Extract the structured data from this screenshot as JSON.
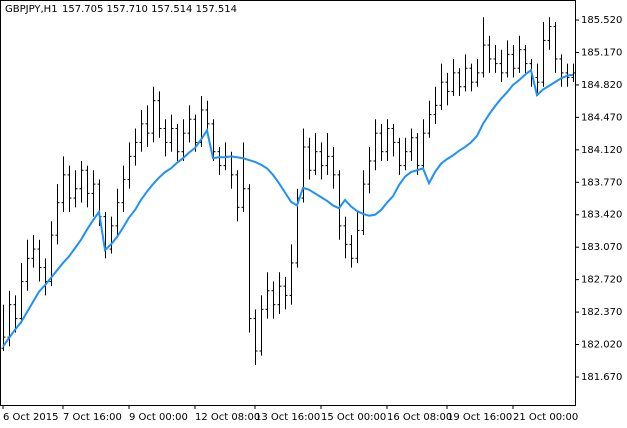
{
  "chart_data": {
    "type": "ohlc",
    "symbol": "GBPJPY,H1",
    "quote": "157.705 157.710 157.514 157.514",
    "bar_color": "#000000",
    "categories": [
      "6 Oct 2015",
      null,
      null,
      null,
      null,
      null,
      null,
      null,
      null,
      null,
      "7 Oct 16:00",
      null,
      null,
      null,
      null,
      null,
      null,
      null,
      null,
      null,
      null,
      "9 Oct 00:00",
      null,
      null,
      null,
      null,
      null,
      null,
      null,
      null,
      null,
      null,
      "12 Oct 08:00",
      null,
      null,
      null,
      null,
      null,
      null,
      null,
      null,
      null,
      "13 Oct 16:00",
      null,
      null,
      null,
      null,
      null,
      null,
      null,
      null,
      null,
      null,
      "15 Oct 00:00",
      null,
      null,
      null,
      null,
      null,
      null,
      null,
      null,
      null,
      null,
      "16 Oct 08:00",
      null,
      null,
      null,
      null,
      null,
      null,
      null,
      null,
      null,
      "19 Oct 16:00",
      null,
      null,
      null,
      null,
      null,
      null,
      null,
      null,
      null,
      null,
      "21 Oct 00:00",
      null,
      null,
      null,
      null,
      null,
      null,
      null,
      null,
      null,
      null
    ],
    "open": [
      181.98,
      182.1,
      182.45,
      182.3,
      182.7,
      182.95,
      183.05,
      182.85,
      182.7,
      183.2,
      183.55,
      183.85,
      183.6,
      183.7,
      183.9,
      183.65,
      183.75,
      183.4,
      183.05,
      183.3,
      183.55,
      183.8,
      184.05,
      184.2,
      184.4,
      184.3,
      184.65,
      184.35,
      184.2,
      184.35,
      184.1,
      184.3,
      184.45,
      184.2,
      184.55,
      184.4,
      184.1,
      183.95,
      184.05,
      183.85,
      183.5,
      183.7,
      182.3,
      181.95,
      182.4,
      182.6,
      182.45,
      182.65,
      182.55,
      182.9,
      183.6,
      184.15,
      183.9,
      184.1,
      183.95,
      184.05,
      183.85,
      183.3,
      183.1,
      182.95,
      183.25,
      183.75,
      184.0,
      184.3,
      184.1,
      184.35,
      184.2,
      183.95,
      184.1,
      184.25,
      183.95,
      184.3,
      184.5,
      184.6,
      184.85,
      184.75,
      184.95,
      184.8,
      185.0,
      184.85,
      184.95,
      185.25,
      185.1,
      185.05,
      184.95,
      185.15,
      185.0,
      185.2,
      185.05,
      184.9,
      184.85,
      185.3,
      185.45,
      185.1,
      184.95,
      184.9
    ],
    "high": [
      182.45,
      182.6,
      182.55,
      182.9,
      183.15,
      183.2,
      183.15,
      182.95,
      183.35,
      183.75,
      184.05,
      183.95,
      183.9,
      184.0,
      183.95,
      183.9,
      183.8,
      183.45,
      183.4,
      183.7,
      183.95,
      184.2,
      184.35,
      184.55,
      184.6,
      184.8,
      184.75,
      184.45,
      184.5,
      184.4,
      184.45,
      184.6,
      184.5,
      184.7,
      184.65,
      184.45,
      184.15,
      184.2,
      184.1,
      183.9,
      184.2,
      183.75,
      182.4,
      182.55,
      182.8,
      182.7,
      182.8,
      182.75,
      183.1,
      183.7,
      184.35,
      184.25,
      184.3,
      184.2,
      184.3,
      184.15,
      183.9,
      183.4,
      183.2,
      183.45,
      183.9,
      184.15,
      184.45,
      184.4,
      184.45,
      184.4,
      184.25,
      184.25,
      184.35,
      184.3,
      184.45,
      184.65,
      184.8,
      185.05,
      184.95,
      185.1,
      185.0,
      185.15,
      185.05,
      185.1,
      185.55,
      185.35,
      185.25,
      185.2,
      185.3,
      185.25,
      185.35,
      185.25,
      185.1,
      185.05,
      185.5,
      185.55,
      185.5,
      185.15,
      185.05,
      185.05
    ],
    "low": [
      181.95,
      182.0,
      182.15,
      182.25,
      182.6,
      182.85,
      182.7,
      182.55,
      182.65,
      183.1,
      183.45,
      183.45,
      183.5,
      183.55,
      183.5,
      183.4,
      183.3,
      182.95,
      183.0,
      183.2,
      183.45,
      183.7,
      183.95,
      184.1,
      184.15,
      184.2,
      184.25,
      184.05,
      184.1,
      184.0,
      184.0,
      184.2,
      184.1,
      184.15,
      184.3,
      184.0,
      183.85,
      183.9,
      183.7,
      183.35,
      183.45,
      182.15,
      181.8,
      181.9,
      182.3,
      182.3,
      182.35,
      182.4,
      182.45,
      182.85,
      183.55,
      183.8,
      183.85,
      183.8,
      183.85,
      183.7,
      183.15,
      182.95,
      182.85,
      182.9,
      183.2,
      183.65,
      183.9,
      184.0,
      184.0,
      184.05,
      183.85,
      183.9,
      184.0,
      183.85,
      183.9,
      184.25,
      184.4,
      184.55,
      184.6,
      184.7,
      184.7,
      184.75,
      184.75,
      184.8,
      184.9,
      184.95,
      184.95,
      184.85,
      184.9,
      184.9,
      184.95,
      184.95,
      184.8,
      184.7,
      184.8,
      185.2,
      184.95,
      184.8,
      184.8,
      184.85
    ],
    "close": [
      182.1,
      182.45,
      182.3,
      182.7,
      182.95,
      183.05,
      182.85,
      182.7,
      183.2,
      183.55,
      183.85,
      183.6,
      183.7,
      183.9,
      183.65,
      183.75,
      183.4,
      183.05,
      183.3,
      183.55,
      183.8,
      184.05,
      184.2,
      184.4,
      184.3,
      184.65,
      184.35,
      184.2,
      184.35,
      184.1,
      184.3,
      184.45,
      184.2,
      184.55,
      184.4,
      184.1,
      183.95,
      184.05,
      183.85,
      183.5,
      183.7,
      182.3,
      181.95,
      182.4,
      182.6,
      182.45,
      182.65,
      182.55,
      182.9,
      183.6,
      184.15,
      183.9,
      184.1,
      183.95,
      184.05,
      183.85,
      183.3,
      183.1,
      182.95,
      183.25,
      183.75,
      184.0,
      184.3,
      184.1,
      184.35,
      184.2,
      183.95,
      184.1,
      184.25,
      183.95,
      184.3,
      184.5,
      184.6,
      184.85,
      184.75,
      184.95,
      184.8,
      185.0,
      184.85,
      184.95,
      185.25,
      185.1,
      185.05,
      184.95,
      185.15,
      185.0,
      185.2,
      185.05,
      184.9,
      184.85,
      185.3,
      185.45,
      185.1,
      184.95,
      184.9,
      184.95
    ],
    "line": {
      "color": "#1e90ff",
      "values": [
        182.0,
        182.09,
        182.18,
        182.26,
        182.37,
        182.48,
        182.59,
        182.66,
        182.74,
        182.82,
        182.9,
        182.97,
        183.06,
        183.15,
        183.26,
        183.36,
        183.45,
        183.04,
        183.1,
        183.18,
        183.28,
        183.39,
        183.47,
        183.58,
        183.67,
        183.75,
        183.82,
        183.88,
        183.92,
        183.98,
        184.03,
        184.09,
        184.14,
        184.23,
        184.33,
        184.03,
        184.04,
        184.04,
        184.05,
        184.04,
        184.03,
        184.01,
        183.99,
        183.96,
        183.92,
        183.85,
        183.76,
        183.66,
        183.56,
        183.52,
        183.71,
        183.69,
        183.65,
        183.61,
        183.57,
        183.52,
        183.49,
        183.58,
        183.51,
        183.46,
        183.43,
        183.41,
        183.42,
        183.47,
        183.55,
        183.62,
        183.74,
        183.83,
        183.88,
        183.9,
        183.92,
        183.76,
        183.88,
        183.97,
        184.02,
        184.06,
        184.11,
        184.15,
        184.2,
        184.27,
        184.4,
        184.5,
        184.59,
        184.67,
        184.74,
        184.82,
        184.87,
        184.93,
        184.98,
        184.71,
        184.77,
        184.81,
        184.85,
        184.89,
        184.92,
        184.93
      ]
    },
    "ylim": [
      181.368,
      185.736
    ],
    "yticks": [
      {
        "value": 185.52,
        "label": "185.520"
      },
      {
        "value": 185.17,
        "label": "185.170"
      },
      {
        "value": 184.82,
        "label": "184.820"
      },
      {
        "value": 184.47,
        "label": "184.470"
      },
      {
        "value": 184.12,
        "label": "184.120"
      },
      {
        "value": 183.77,
        "label": "183.770"
      },
      {
        "value": 183.42,
        "label": "183.420"
      },
      {
        "value": 183.07,
        "label": "183.070"
      },
      {
        "value": 182.72,
        "label": "182.720"
      },
      {
        "value": 182.37,
        "label": "182.370"
      },
      {
        "value": 182.02,
        "label": "182.020"
      },
      {
        "value": 181.67,
        "label": "181.670"
      }
    ]
  }
}
